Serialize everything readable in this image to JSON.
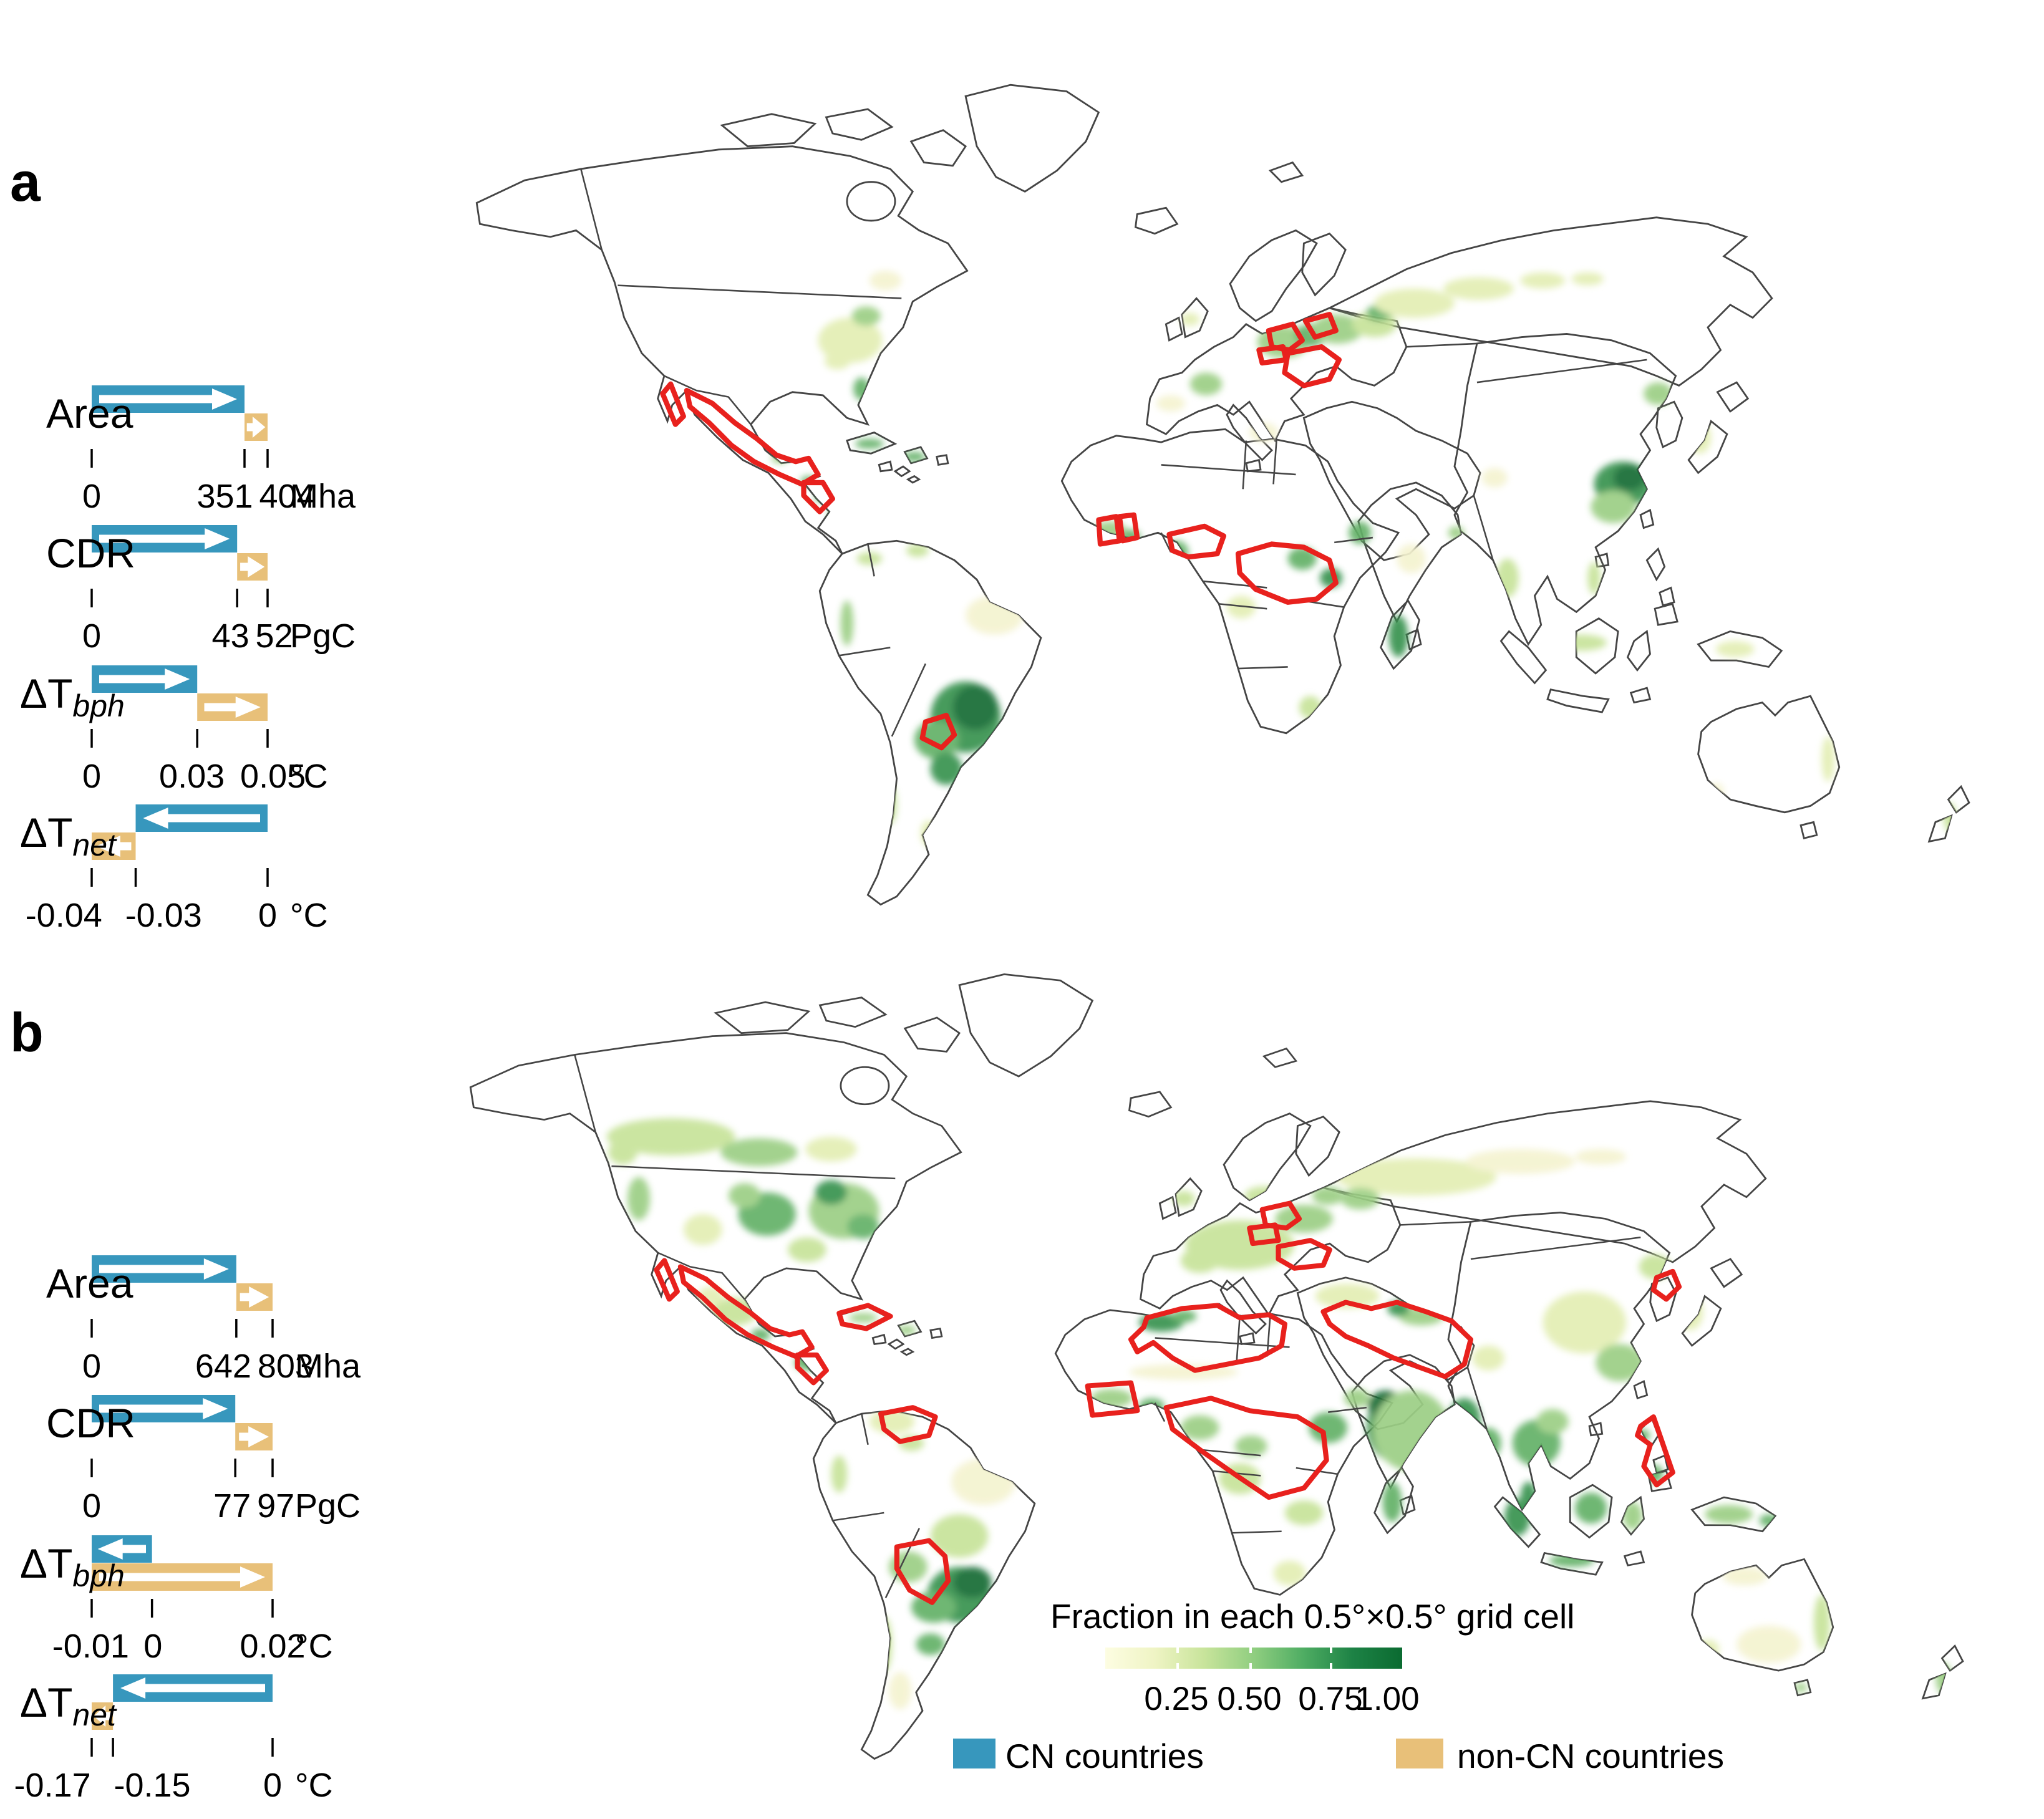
{
  "panels": [
    {
      "letter": "a",
      "rows": [
        {
          "label": "Area",
          "sub": "",
          "unit": "Mha",
          "axis_min": 0,
          "axis_max": 404,
          "cn_from": 0,
          "cn_to": 351,
          "non_cn_from": 351,
          "non_cn_to": 404,
          "ticks": [
            {
              "v": 0,
              "t": "0"
            },
            {
              "v": 351,
              "t": "351"
            },
            {
              "v": 404,
              "t": "404"
            }
          ]
        },
        {
          "label": "CDR",
          "sub": "",
          "unit": "PgC",
          "axis_min": 0,
          "axis_max": 52,
          "cn_from": 0,
          "cn_to": 43,
          "non_cn_from": 43,
          "non_cn_to": 52,
          "ticks": [
            {
              "v": 0,
              "t": "0"
            },
            {
              "v": 43,
              "t": "43"
            },
            {
              "v": 52,
              "t": "52"
            }
          ]
        },
        {
          "label": "ΔT",
          "sub": "bph",
          "unit": "°C",
          "axis_min": 0,
          "axis_max": 0.05,
          "cn_from": 0,
          "cn_to": 0.03,
          "non_cn_from": 0.03,
          "non_cn_to": 0.05,
          "ticks": [
            {
              "v": 0,
              "t": "0"
            },
            {
              "v": 0.03,
              "t": "0.03"
            },
            {
              "v": 0.05,
              "t": "0.05"
            }
          ]
        },
        {
          "label": "ΔT",
          "sub": "net",
          "unit": "°C",
          "axis_min": -0.04,
          "axis_max": 0,
          "cn_from": 0,
          "cn_to": -0.03,
          "non_cn_from": -0.03,
          "non_cn_to": -0.04,
          "ticks": [
            {
              "v": -0.04,
              "t": "-0.04"
            },
            {
              "v": -0.03,
              "t": "-0.03"
            },
            {
              "v": 0,
              "t": "0"
            }
          ]
        }
      ]
    },
    {
      "letter": "b",
      "rows": [
        {
          "label": "Area",
          "sub": "",
          "unit": "Mha",
          "axis_min": 0,
          "axis_max": 803,
          "cn_from": 0,
          "cn_to": 642,
          "non_cn_from": 642,
          "non_cn_to": 803,
          "ticks": [
            {
              "v": 0,
              "t": "0"
            },
            {
              "v": 642,
              "t": "642"
            },
            {
              "v": 803,
              "t": "803"
            }
          ]
        },
        {
          "label": "CDR",
          "sub": "",
          "unit": "PgC",
          "axis_min": 0,
          "axis_max": 97,
          "cn_from": 0,
          "cn_to": 77,
          "non_cn_from": 77,
          "non_cn_to": 97,
          "ticks": [
            {
              "v": 0,
              "t": "0"
            },
            {
              "v": 77,
              "t": "77"
            },
            {
              "v": 97,
              "t": "97"
            }
          ]
        },
        {
          "label": "ΔT",
          "sub": "bph",
          "unit": "°C",
          "axis_min": -0.01,
          "axis_max": 0.02,
          "cn_from": 0,
          "cn_to": -0.01,
          "non_cn_from": -0.01,
          "non_cn_to": 0.02,
          "ticks": [
            {
              "v": -0.01,
              "t": "-0.01"
            },
            {
              "v": 0,
              "t": "0"
            },
            {
              "v": 0.02,
              "t": "0.02"
            }
          ]
        },
        {
          "label": "ΔT",
          "sub": "net",
          "unit": "°C",
          "axis_min": -0.17,
          "axis_max": 0,
          "cn_from": 0,
          "cn_to": -0.15,
          "non_cn_from": -0.15,
          "non_cn_to": -0.17,
          "ticks": [
            {
              "v": -0.17,
              "t": "-0.17"
            },
            {
              "v": -0.15,
              "t": "-0.15"
            },
            {
              "v": 0,
              "t": "0"
            }
          ]
        }
      ]
    }
  ],
  "map_legend": {
    "colorbar_title": "Fraction in each 0.5°×0.5° grid cell",
    "colorbar_ticks": [
      "0.25",
      "0.50",
      "0.75",
      "1.00"
    ],
    "colorbar_tick_positions": [
      0.24,
      0.485,
      0.757,
      0.95
    ],
    "colorbar_colors": [
      "#FDFDE2",
      "#EFF4C4",
      "#C8E49B",
      "#90CE80",
      "#4FAD63",
      "#1D8245",
      "#0B6B31"
    ],
    "cn_label": "CN countries",
    "non_cn_label": "non-CN countries"
  },
  "colors": {
    "cn_blue": "#3797BD",
    "non_cn_tan": "#E8C079",
    "red_outline": "#E8211D",
    "map_border": "#454545",
    "text": "#000000"
  },
  "chart_data": [
    {
      "panel": "a",
      "type": "bar",
      "subtype": "horizontal-arrow-bars",
      "categories": [
        "Area",
        "CDR",
        "ΔT_bph",
        "ΔT_net"
      ],
      "units": [
        "Mha",
        "PgC",
        "°C",
        "°C"
      ],
      "series": [
        {
          "name": "CN countries",
          "segments": [
            [
              0,
              351
            ],
            [
              0,
              43
            ],
            [
              0,
              0.03
            ],
            [
              0,
              -0.03
            ]
          ]
        },
        {
          "name": "non-CN countries",
          "segments": [
            [
              351,
              404
            ],
            [
              43,
              52
            ],
            [
              0.03,
              0.05
            ],
            [
              -0.03,
              -0.04
            ]
          ]
        }
      ],
      "axis_ticks": [
        [
          0,
          351,
          404
        ],
        [
          0,
          43,
          52
        ],
        [
          0,
          0.03,
          0.05
        ],
        [
          -0.04,
          -0.03,
          0
        ]
      ],
      "legend_position": "bottom"
    },
    {
      "panel": "b",
      "type": "bar",
      "subtype": "horizontal-arrow-bars",
      "categories": [
        "Area",
        "CDR",
        "ΔT_bph",
        "ΔT_net"
      ],
      "units": [
        "Mha",
        "PgC",
        "°C",
        "°C"
      ],
      "series": [
        {
          "name": "CN countries",
          "segments": [
            [
              0,
              642
            ],
            [
              0,
              77
            ],
            [
              0,
              -0.01
            ],
            [
              0,
              -0.15
            ]
          ]
        },
        {
          "name": "non-CN countries",
          "segments": [
            [
              642,
              803
            ],
            [
              77,
              97
            ],
            [
              -0.01,
              0.02
            ],
            [
              -0.15,
              -0.17
            ]
          ]
        }
      ],
      "axis_ticks": [
        [
          0,
          642,
          803
        ],
        [
          0,
          77,
          97
        ],
        [
          -0.01,
          0,
          0.02
        ],
        [
          -0.17,
          -0.15,
          0
        ]
      ],
      "legend_position": "bottom"
    },
    {
      "panel": "maps",
      "type": "heatmap",
      "title": "Fraction in each 0.5°×0.5° grid cell",
      "colorbar_range": [
        0,
        1
      ],
      "colorbar_ticks": [
        0.25,
        0.5,
        0.75,
        1.0
      ],
      "legend": [
        "CN countries",
        "non-CN countries"
      ]
    }
  ]
}
